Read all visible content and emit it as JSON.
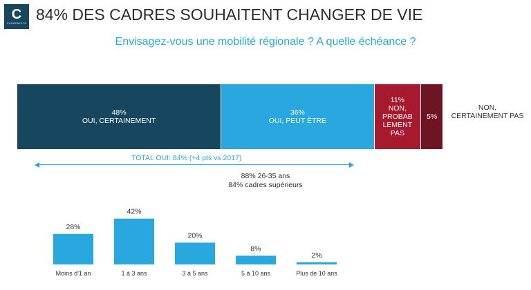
{
  "logo": {
    "letter": "C",
    "wordmark": "CADREMPLOI"
  },
  "title": "84% DES CADRES SOUHAITENT CHANGER DE VIE",
  "subtitle": "Envisagez-vous une mobilité régionale ? A quelle échéance ?",
  "colors": {
    "dark_blue": "#17465f",
    "light_blue": "#29a7df",
    "red": "#a6192e",
    "maroon": "#6e1423"
  },
  "stacked": {
    "segments": [
      {
        "pct": "48%",
        "label": "OUI, CERTAINEMENT",
        "value": 48
      },
      {
        "pct": "36%",
        "label": "OUI, PEUT ÊTRE",
        "value": 36
      },
      {
        "pct": "11%",
        "label": "NON, PROBAB LEMENT PAS",
        "value": 11
      },
      {
        "pct": "5%",
        "label": "",
        "value": 5
      }
    ],
    "outside_label": "NON, CERTAINEMENT PAS"
  },
  "total": {
    "label": "TOTAL OUI: 84% (+4 pts vs 2017)",
    "note_1": "88% 26-35 ans",
    "note_2": "84% cadres supérieurs"
  },
  "chart_data": {
    "type": "bar",
    "categories": [
      "Moins d'1 an",
      "1 à 3 ans",
      "3 à 5 ans",
      "5 à 10 ans",
      "Plus de 10 ans"
    ],
    "values": [
      28,
      42,
      20,
      8,
      2
    ],
    "value_labels": [
      "28%",
      "42%",
      "20%",
      "8%",
      "2%"
    ],
    "color": "#29a7df"
  }
}
